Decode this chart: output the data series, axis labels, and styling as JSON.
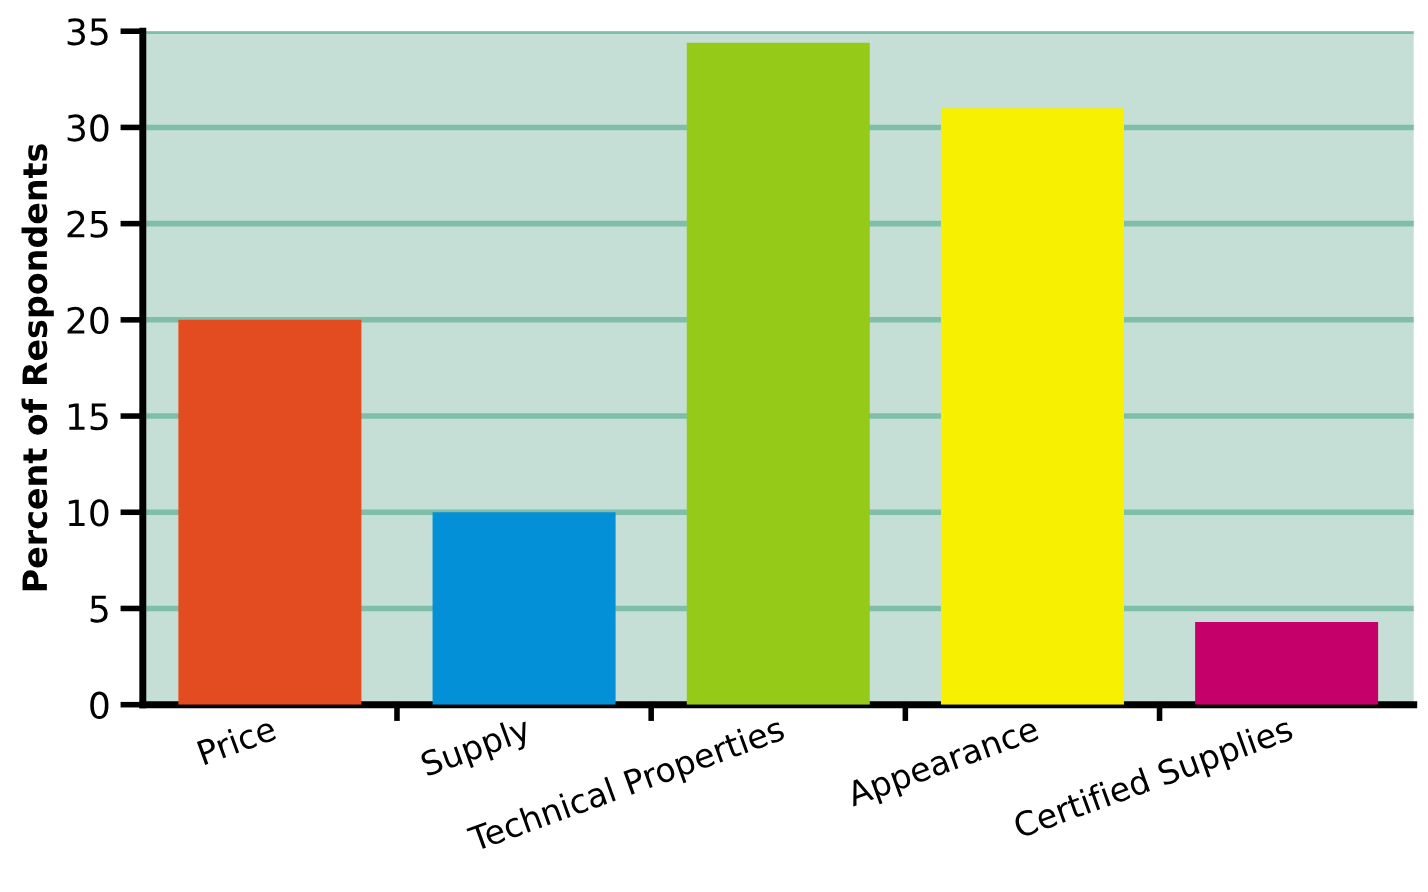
{
  "chart_data": {
    "type": "bar",
    "ylabel": "Percent of Respondents",
    "categories": [
      "Price",
      "Supply",
      "Technical Properties",
      "Appearance",
      "Certified Supplies"
    ],
    "values": [
      20,
      10,
      34.4,
      31,
      4.3
    ],
    "colors": [
      "#e34b20",
      "#0390d6",
      "#95cb18",
      "#f7f000",
      "#c5006a"
    ],
    "ylim": [
      0,
      35
    ],
    "yticks": [
      0,
      5,
      10,
      15,
      20,
      25,
      30,
      35
    ],
    "grid": "y"
  }
}
